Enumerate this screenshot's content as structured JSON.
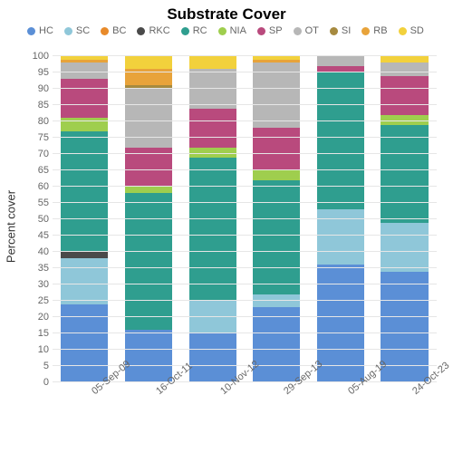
{
  "chart": {
    "type": "stacked-bar",
    "title": "Substrate Cover",
    "title_fontsize": 17,
    "ylabel": "Percent cover",
    "ylim": [
      0,
      100
    ],
    "ytick_step": 5,
    "background_color": "#ffffff",
    "grid_color": "#e6e6e6",
    "bar_width_pct": 74,
    "series": [
      {
        "key": "HC",
        "label": "HC",
        "color": "#5b8fd6"
      },
      {
        "key": "SC",
        "label": "SC",
        "color": "#8fc7d9"
      },
      {
        "key": "BC",
        "label": "BC",
        "color": "#e88a2a"
      },
      {
        "key": "RKC",
        "label": "RKC",
        "color": "#4a4a4a"
      },
      {
        "key": "RC",
        "label": "RC",
        "color": "#2f9e8f"
      },
      {
        "key": "NIA",
        "label": "NIA",
        "color": "#9fce4e"
      },
      {
        "key": "SP",
        "label": "SP",
        "color": "#b94a7d"
      },
      {
        "key": "OT",
        "label": "OT",
        "color": "#b7b7b7"
      },
      {
        "key": "SI",
        "label": "SI",
        "color": "#a68a3f"
      },
      {
        "key": "RB",
        "label": "RB",
        "color": "#e8a33a"
      },
      {
        "key": "SD",
        "label": "SD",
        "color": "#f2d13c"
      }
    ],
    "categories": [
      "05-Sep-09",
      "16-Oct-11",
      "10-Nov-12",
      "29-Sep-13",
      "05-Aug-19",
      "24-Oct-23"
    ],
    "data": {
      "05-Sep-09": {
        "HC": 24,
        "SC": 14,
        "BC": 0,
        "RKC": 2,
        "RC": 37,
        "NIA": 4,
        "SP": 12,
        "OT": 5,
        "SI": 0,
        "RB": 1,
        "SD": 1
      },
      "16-Oct-11": {
        "HC": 16,
        "SC": 0,
        "BC": 0,
        "RKC": 0,
        "RC": 42,
        "NIA": 2,
        "SP": 12,
        "OT": 18,
        "SI": 1,
        "RB": 5,
        "SD": 4
      },
      "10-Nov-12": {
        "HC": 15,
        "SC": 10,
        "BC": 0,
        "RKC": 0,
        "RC": 44,
        "NIA": 3,
        "SP": 12,
        "OT": 12,
        "SI": 0,
        "RB": 0,
        "SD": 4
      },
      "29-Sep-13": {
        "HC": 23,
        "SC": 4,
        "BC": 0,
        "RKC": 0,
        "RC": 35,
        "NIA": 3,
        "SP": 13,
        "OT": 20,
        "SI": 0,
        "RB": 1,
        "SD": 1
      },
      "05-Aug-19": {
        "HC": 36,
        "SC": 17,
        "BC": 0,
        "RKC": 0,
        "RC": 42,
        "NIA": 0,
        "SP": 2,
        "OT": 3,
        "SI": 0,
        "RB": 0,
        "SD": 0
      },
      "24-Oct-23": {
        "HC": 34,
        "SC": 15,
        "BC": 0,
        "RKC": 0,
        "RC": 30,
        "NIA": 3,
        "SP": 12,
        "OT": 4,
        "SI": 0,
        "RB": 0,
        "SD": 2
      }
    }
  }
}
